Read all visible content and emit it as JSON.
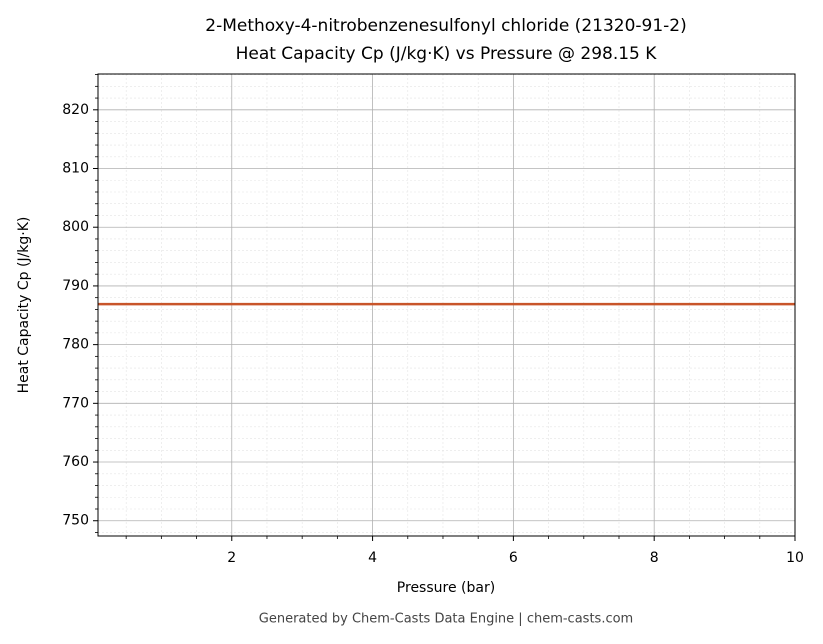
{
  "chart_data": {
    "type": "line",
    "title": "2-Methoxy-4-nitrobenzenesulfonyl chloride (21320-91-2)",
    "subtitle": "Heat Capacity Cp (J/kg·K) vs Pressure @ 298.15 K",
    "x_label": "Pressure (bar)",
    "y_label": "Heat Capacity Cp (J/kg·K)",
    "footer": "Generated by Chem-Casts Data Engine | chem-casts.com",
    "x": [
      0.1,
      1,
      2,
      3,
      4,
      5,
      6,
      7,
      8,
      9,
      10
    ],
    "series": [
      {
        "name": "Cp",
        "color": "#c8552a",
        "values": [
          786.9,
          786.9,
          786.9,
          786.9,
          786.9,
          786.9,
          786.9,
          786.9,
          786.9,
          786.9,
          786.9
        ]
      }
    ],
    "xlim": [
      0.1,
      10
    ],
    "ylim": [
      747.4,
      826.1
    ],
    "xticks": [
      2,
      4,
      6,
      8,
      10
    ],
    "yticks": [
      750,
      760,
      770,
      780,
      790,
      800,
      810,
      820
    ],
    "xminorticks": [
      0.5,
      1,
      1.5,
      2.5,
      3,
      3.5,
      4.5,
      5,
      5.5,
      6.5,
      7,
      7.5,
      8.5,
      9,
      9.5
    ],
    "yminorticks": [
      748,
      752,
      754,
      756,
      758,
      762,
      764,
      766,
      768,
      772,
      774,
      776,
      778,
      782,
      784,
      786,
      788,
      792,
      794,
      796,
      798,
      802,
      804,
      806,
      808,
      812,
      814,
      816,
      818,
      822,
      824,
      826
    ],
    "grid": true,
    "minor_grid": true
  }
}
